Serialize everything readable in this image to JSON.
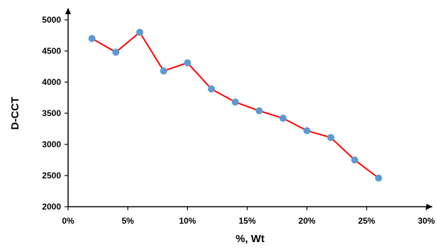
{
  "chart_data": {
    "type": "line",
    "title": "",
    "xlabel": "%, Wt",
    "ylabel": "D-CCT",
    "xlim": [
      0,
      30
    ],
    "ylim": [
      2000,
      5000
    ],
    "x_ticks": [
      0,
      5,
      10,
      15,
      20,
      25,
      30
    ],
    "x_tick_labels": [
      "0%",
      "5%",
      "10%",
      "15%",
      "20%",
      "25%",
      "30%"
    ],
    "y_ticks": [
      2000,
      2500,
      3000,
      3500,
      4000,
      4500,
      5000
    ],
    "y_tick_labels": [
      "2000",
      "2500",
      "3000",
      "3500",
      "4000",
      "4500",
      "5000"
    ],
    "grid": false,
    "colors": {
      "line": "#ff0000",
      "marker": "#5b9bd5",
      "axis": "#000000"
    },
    "series": [
      {
        "x": [
          2,
          4,
          6,
          8,
          10,
          12,
          14,
          16,
          18,
          20,
          22,
          24,
          26
        ],
        "values": [
          4700,
          4480,
          4800,
          4180,
          4310,
          3890,
          3680,
          3540,
          3420,
          3220,
          3110,
          2750,
          2460
        ]
      }
    ]
  }
}
